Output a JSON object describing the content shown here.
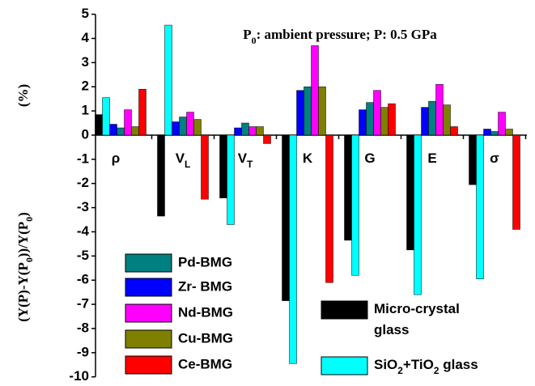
{
  "chart_data": {
    "type": "bar",
    "title": "P0: ambient pressure; P: 0.5 GPa",
    "y_label": "(Y(P)-Y(P0))/Y(P0)",
    "y_unit": "(%)",
    "categories": [
      "ρ",
      "VL",
      "VT",
      "K",
      "G",
      "E",
      "σ"
    ],
    "series": [
      {
        "name": "Micro-crystal glass",
        "color": "#000000",
        "values": [
          0.85,
          -3.35,
          -2.6,
          -6.85,
          -4.35,
          -4.75,
          -2.05
        ]
      },
      {
        "name": "SiO2+TiO2 glass",
        "color": "#00ffff",
        "values": [
          1.55,
          4.55,
          -3.7,
          -9.45,
          -5.8,
          -6.6,
          -5.95
        ]
      },
      {
        "name": "Zr- BMG",
        "color": "#0000ff",
        "values": [
          0.45,
          0.55,
          0.3,
          1.85,
          1.05,
          1.15,
          0.25
        ]
      },
      {
        "name": "Pd-BMG",
        "color": "#008080",
        "values": [
          0.3,
          0.75,
          0.5,
          2.0,
          1.35,
          1.4,
          0.15
        ]
      },
      {
        "name": "Nd-BMG",
        "color": "#ff00ff",
        "values": [
          1.05,
          0.95,
          0.35,
          3.7,
          1.85,
          2.1,
          0.95
        ]
      },
      {
        "name": "Cu-BMG",
        "color": "#808000",
        "values": [
          0.35,
          0.65,
          0.35,
          2.0,
          1.15,
          1.25,
          0.25
        ]
      },
      {
        "name": "Ce-BMG",
        "color": "#ff0000",
        "values": [
          1.9,
          -2.65,
          -0.35,
          -6.1,
          1.3,
          0.35,
          -3.9
        ]
      }
    ],
    "ylim": [
      -10,
      5
    ],
    "yticks": [
      -10,
      -9,
      -8,
      -7,
      -6,
      -5,
      -4,
      -3,
      -2,
      -1,
      0,
      1,
      2,
      3,
      4,
      5
    ]
  }
}
